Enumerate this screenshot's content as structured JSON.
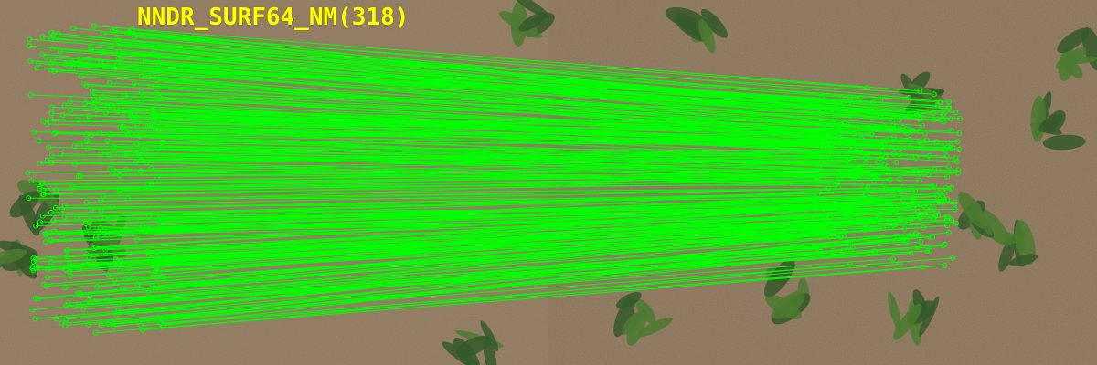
{
  "overlay": {
    "label": "NNDR_SURF64_NM(318)",
    "match_count": 318,
    "label_color": "#ffff00",
    "match_color": "#00ff00"
  },
  "scene": {
    "left_image": "soil-with-seedlings-left-icon",
    "right_image": "soil-with-seedlings-right-icon",
    "soil_color": "#8a7258",
    "plant_color": "#3f6b2a"
  }
}
